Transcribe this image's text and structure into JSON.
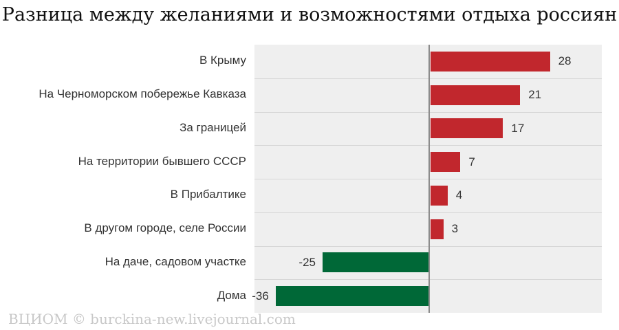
{
  "title": "Разница между желаниями и возможностями отдыха россиян",
  "watermark": "ВЦИОМ © burckina-new.livejournal.com",
  "colors": {
    "positive": "#c1272d",
    "negative": "#006837"
  },
  "chart_data": {
    "type": "bar",
    "orientation": "horizontal",
    "categories": [
      "В Крыму",
      "На Черноморском побережье Кавказа",
      "За границей",
      "На территории бывшего СССР",
      "В Прибалтике",
      "В другом городе, селе России",
      "На даче, садовом участке",
      "Дома"
    ],
    "values": [
      28,
      21,
      17,
      7,
      4,
      3,
      -25,
      -36
    ],
    "xlim": [
      -36,
      41
    ],
    "grid": false
  }
}
